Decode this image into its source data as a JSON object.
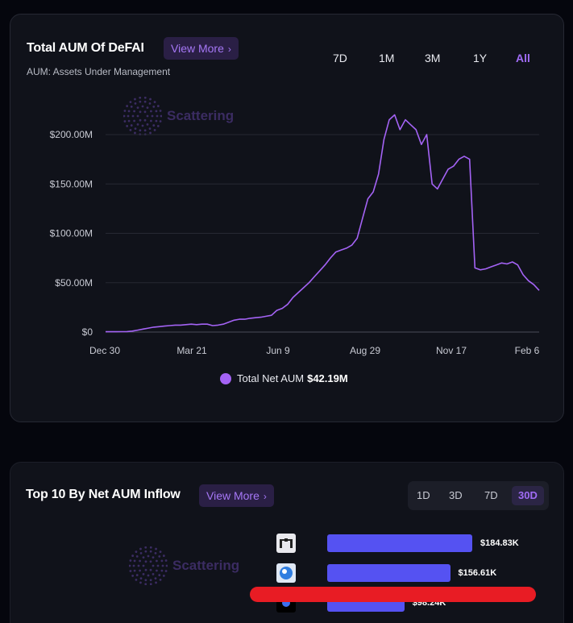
{
  "aum_card": {
    "title": "Total AUM Of DeFAI",
    "view_more": "View More",
    "subtitle": "AUM: Assets Under Management",
    "ranges": [
      "7D",
      "1M",
      "3M",
      "1Y",
      "All"
    ],
    "active_range": "All",
    "watermark": "Scattering",
    "legend_label": "Total Net AUM",
    "legend_value": "$42.19M"
  },
  "inflow_card": {
    "title": "Top 10 By Net AUM Inflow",
    "view_more": "View More",
    "ranges": [
      "1D",
      "3D",
      "7D",
      "30D"
    ],
    "active_range": "30D",
    "watermark": "Scattering",
    "rows": [
      {
        "value": "$184.83K",
        "amount": 184.83
      },
      {
        "value": "$156.61K",
        "amount": 156.61
      },
      {
        "value": "$98.24K",
        "amount": 98.24
      }
    ]
  },
  "colors": {
    "accent": "#a463f5",
    "bar": "#5552f2",
    "redaction": "#e81c24"
  },
  "chart_data": {
    "type": "line",
    "title": "Total AUM Of DeFAI",
    "xlabel": "",
    "ylabel": "",
    "ylim": [
      0,
      220
    ],
    "y_ticks": [
      "$0",
      "$50.00M",
      "$100.00M",
      "$150.00M",
      "$200.00M"
    ],
    "y_tick_values": [
      0,
      50,
      100,
      150,
      200
    ],
    "x_ticks": [
      "Dec 30",
      "Mar 21",
      "Jun 9",
      "Aug 29",
      "Nov 17",
      "Feb 6"
    ],
    "grid": true,
    "legend": "bottom-center",
    "series": [
      {
        "name": "Total Net AUM",
        "color": "#a463f5",
        "values": [
          0.3,
          0.3,
          0.3,
          0.4,
          0.5,
          1.0,
          2.0,
          3.0,
          4.0,
          5.0,
          5.5,
          6.0,
          6.5,
          7.0,
          7.0,
          7.5,
          8.0,
          7.5,
          8.0,
          8.0,
          6.5,
          7.0,
          8.0,
          10.0,
          12.0,
          13.0,
          13.0,
          14.0,
          14.5,
          15.0,
          16.0,
          17.0,
          22.0,
          24.0,
          28.0,
          35.0,
          40.0,
          45.0,
          50.0,
          56.0,
          62.0,
          68.0,
          75.0,
          81.0,
          83.0,
          85.0,
          88.0,
          95.0,
          115.0,
          135.0,
          142.0,
          160.0,
          195.0,
          215.0,
          220.0,
          205.0,
          215.0,
          210.0,
          205.0,
          190.0,
          200.0,
          150.0,
          145.0,
          155.0,
          165.0,
          168.0,
          175.0,
          178.0,
          175.0,
          65.0,
          63.0,
          64.0,
          66.0,
          68.0,
          70.0,
          69.0,
          71.0,
          68.0,
          58.0,
          52.0,
          48.0,
          42.19
        ]
      }
    ]
  }
}
